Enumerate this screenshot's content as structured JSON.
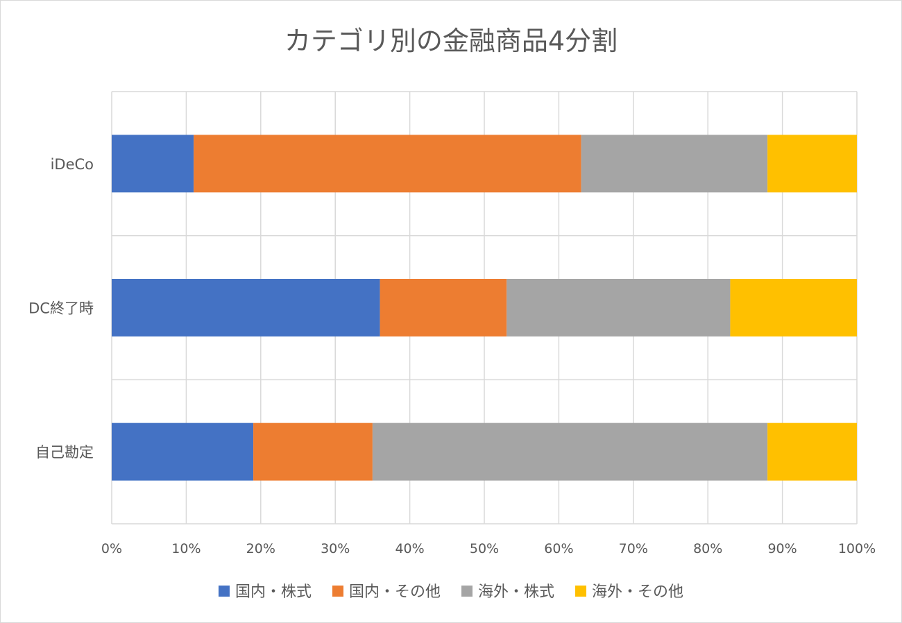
{
  "chart_data": {
    "type": "bar",
    "orientation": "horizontal",
    "stacked": "percent",
    "title": "カテゴリ別の金融商品4分割",
    "categories": [
      "iDeCo",
      "DC終了時",
      "自己勘定"
    ],
    "series": [
      {
        "name": "国内・株式",
        "color": "#4472C4",
        "values": [
          11,
          36,
          19
        ]
      },
      {
        "name": "国内・その他",
        "color": "#ED7D31",
        "values": [
          52,
          17,
          16
        ]
      },
      {
        "name": "海外・株式",
        "color": "#A5A5A5",
        "values": [
          25,
          30,
          53
        ]
      },
      {
        "name": "海外・その他",
        "color": "#FFC000",
        "values": [
          12,
          17,
          12
        ]
      }
    ],
    "xlim": [
      0,
      100
    ],
    "xticks": [
      "0%",
      "10%",
      "20%",
      "30%",
      "40%",
      "50%",
      "60%",
      "70%",
      "80%",
      "90%",
      "100%"
    ],
    "xlabel": "",
    "ylabel": "",
    "grid": true,
    "legend_position": "bottom"
  }
}
